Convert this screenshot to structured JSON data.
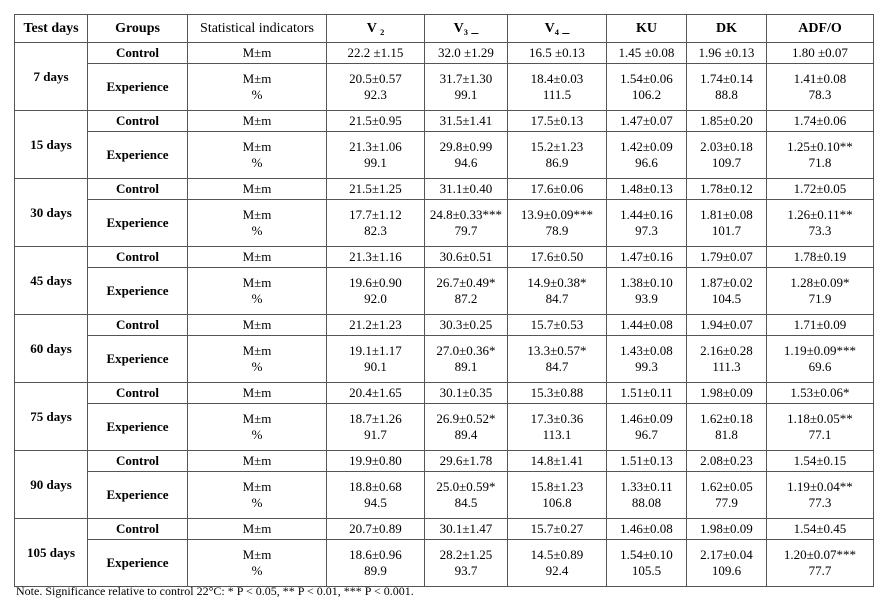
{
  "table": {
    "header": [
      "Test days",
      "Groups",
      "Statistical indicators",
      "V ₂",
      "V₃ _",
      "V₄ _",
      "KU",
      "DK",
      "ADF/O"
    ],
    "groups": [
      {
        "day": "7 days",
        "control": {
          "label": "Control",
          "indicator": "M±m",
          "values": [
            "22.2 ±1.15",
            "32.0 ±1.29",
            "16.5 ±0.13",
            "1.45 ±0.08",
            "1.96 ±0.13",
            "1.80 ±0.07"
          ]
        },
        "experience": {
          "label": "Experience",
          "indicator": "M±m",
          "values": [
            "20.5±0.57",
            "31.7±1.30",
            "18.4±0.03",
            "1.54±0.06",
            "1.74±0.14",
            "1.41±0.08"
          ],
          "percent_indicator": "%",
          "percents": [
            "92.3",
            "99.1",
            "111.5",
            "106.2",
            "88.8",
            "78.3"
          ]
        }
      },
      {
        "day": "15 days",
        "control": {
          "label": "Control",
          "indicator": "M±m",
          "values": [
            "21.5±0.95",
            "31.5±1.41",
            "17.5±0.13",
            "1.47±0.07",
            "1.85±0.20",
            "1.74±0.06"
          ]
        },
        "experience": {
          "label": "Experience",
          "indicator": "M±m",
          "values": [
            "21.3±1.06",
            "29.8±0.99",
            "15.2±1.23",
            "1.42±0.09",
            "2.03±0.18",
            "1.25±0.10**"
          ],
          "percent_indicator": "%",
          "percents": [
            "99.1",
            "94.6",
            "86.9",
            "96.6",
            "109.7",
            "71.8"
          ]
        }
      },
      {
        "day": "30 days",
        "control": {
          "label": "Control",
          "indicator": "M±m",
          "values": [
            "21.5±1.25",
            "31.1±0.40",
            "17.6±0.06",
            "1.48±0.13",
            "1.78±0.12",
            "1.72±0.05"
          ]
        },
        "experience": {
          "label": "Experience",
          "indicator": "M±m",
          "values": [
            "17.7±1.12",
            "24.8±0.33***",
            "13.9±0.09***",
            "1.44±0.16",
            "1.81±0.08",
            "1.26±0.11**"
          ],
          "percent_indicator": "%",
          "percents": [
            "82.3",
            "79.7",
            "78.9",
            "97.3",
            "101.7",
            "73.3"
          ]
        }
      },
      {
        "day": "45 days",
        "control": {
          "label": "Control",
          "indicator": "M±m",
          "values": [
            "21.3±1.16",
            "30.6±0.51",
            "17.6±0.50",
            "1.47±0.16",
            "1.79±0.07",
            "1.78±0.19"
          ]
        },
        "experience": {
          "label": "Experience",
          "indicator": "M±m",
          "values": [
            "19.6±0.90",
            "26.7±0.49*",
            "14.9±0.38*",
            "1.38±0.10",
            "1.87±0.02",
            "1.28±0.09*"
          ],
          "percent_indicator": "%",
          "percents": [
            "92.0",
            "87.2",
            "84.7",
            "93.9",
            "104.5",
            "71.9"
          ]
        }
      },
      {
        "day": "60 days",
        "control": {
          "label": "Control",
          "indicator": "M±m",
          "values": [
            "21.2±1.23",
            "30.3±0.25",
            "15.7±0.53",
            "1.44±0.08",
            "1.94±0.07",
            "1.71±0.09"
          ]
        },
        "experience": {
          "label": "Experience",
          "indicator": "M±m",
          "values": [
            "19.1±1.17",
            "27.0±0.36*",
            "13.3±0.57*",
            "1.43±0.08",
            "2.16±0.28",
            "1.19±0.09***"
          ],
          "percent_indicator": "%",
          "percents": [
            "90.1",
            "89.1",
            "84.7",
            "99.3",
            "111.3",
            "69.6"
          ]
        }
      },
      {
        "day": "75 days",
        "control": {
          "label": "Control",
          "indicator": "M±m",
          "values": [
            "20.4±1.65",
            "30.1±0.35",
            "15.3±0.88",
            "1.51±0.11",
            "1.98±0.09",
            "1.53±0.06*"
          ]
        },
        "experience": {
          "label": "Experience",
          "indicator": "M±m",
          "values": [
            "18.7±1.26",
            "26.9±0.52*",
            "17.3±0.36",
            "1.46±0.09",
            "1.62±0.18",
            "1.18±0.05**"
          ],
          "percent_indicator": "%",
          "percents": [
            "91.7",
            "89.4",
            "113.1",
            "96.7",
            "81.8",
            "77.1"
          ]
        }
      },
      {
        "day": "90 days",
        "control": {
          "label": "Control",
          "indicator": "M±m",
          "values": [
            "19.9±0.80",
            "29.6±1.78",
            "14.8±1.41",
            "1.51±0.13",
            "2.08±0.23",
            "1.54±0.15"
          ]
        },
        "experience": {
          "label": "Experience",
          "indicator": "M±m",
          "values": [
            "18.8±0.68",
            "25.0±0.59*",
            "15.8±1.23",
            "1.33±0.11",
            "1.62±0.05",
            "1.19±0.04**"
          ],
          "percent_indicator": "%",
          "percents": [
            "94.5",
            "84.5",
            "106.8",
            "88.08",
            "77.9",
            "77.3"
          ]
        }
      },
      {
        "day": "105 days",
        "control": {
          "label": "Control",
          "indicator": "M±m",
          "values": [
            "20.7±0.89",
            "30.1±1.47",
            "15.7±0.27",
            "1.46±0.08",
            "1.98±0.09",
            "1.54±0.45"
          ]
        },
        "experience": {
          "label": "Experience",
          "indicator": "M±m",
          "values": [
            "18.6±0.96",
            "28.2±1.25",
            "14.5±0.89",
            "1.54±0.10",
            "2.17±0.04",
            "1.20±0.07***"
          ],
          "percent_indicator": "%",
          "percents": [
            "89.9",
            "93.7",
            "92.4",
            "105.5",
            "109.6",
            "77.7"
          ]
        }
      }
    ]
  },
  "note": "Note. Significance relative to control 22°C: * P < 0.05, ** P < 0.01, *** P < 0.001."
}
